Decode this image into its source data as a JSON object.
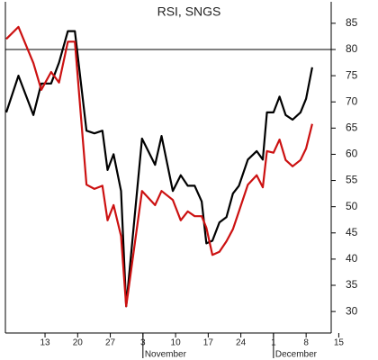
{
  "chart_data": {
    "type": "line",
    "title": "RSI, SNGS",
    "x": [
      4.7,
      7.3,
      10.5,
      12.2,
      14.3,
      16,
      17.9,
      19.4,
      21.9,
      23.6,
      25.3,
      26.4,
      27.7,
      29.3,
      30.4,
      33.8,
      36.6,
      38,
      40.4,
      42.1,
      43.6,
      45.1,
      46.6,
      47.6,
      48.9,
      50.4,
      51.9,
      53.3,
      54.6,
      56.5,
      58.4,
      59.7,
      60.6,
      62,
      63.3,
      64.6,
      66.1,
      67.8,
      69,
      70.3
    ],
    "series": [
      {
        "name": "RSI",
        "color": "#000000",
        "values": [
          68,
          75,
          67.5,
          73.5,
          73.5,
          77.5,
          83.5,
          83.5,
          64.5,
          64,
          64.5,
          57,
          60,
          53,
          31,
          63,
          58,
          63.5,
          53,
          56,
          54,
          54,
          51,
          43,
          43.5,
          47,
          48,
          52.5,
          54,
          59,
          60.6,
          59,
          68,
          68,
          71,
          67.5,
          66.6,
          68,
          70.6,
          76.6
        ]
      },
      {
        "name": "Signal",
        "color": "#cc1111",
        "values": [
          82,
          84.3,
          77.4,
          72.3,
          75.7,
          73.7,
          81.5,
          81.5,
          54.2,
          53.4,
          54,
          47.4,
          50.3,
          44.4,
          31,
          53,
          50.3,
          53,
          51.3,
          47.4,
          49.1,
          48.2,
          48.2,
          46,
          40.8,
          41.4,
          43.4,
          45.7,
          49.1,
          54.2,
          56,
          53.7,
          60.6,
          60.3,
          62.8,
          58.9,
          57.7,
          58.9,
          61.1,
          65.8
        ]
      }
    ],
    "xlim": [
      4.5,
      76.5
    ],
    "xticks": [
      {
        "value": 13,
        "label": "13"
      },
      {
        "value": 20,
        "label": "20"
      },
      {
        "value": 27,
        "label": "27"
      },
      {
        "value": 34,
        "label": "3"
      },
      {
        "value": 41,
        "label": "10"
      },
      {
        "value": 48,
        "label": "17"
      },
      {
        "value": 55,
        "label": "24"
      },
      {
        "value": 62,
        "label": "1"
      },
      {
        "value": 69,
        "label": "8"
      },
      {
        "value": 76,
        "label": "15"
      }
    ],
    "months": [
      {
        "value": 34,
        "label": "November"
      },
      {
        "value": 62,
        "label": "December"
      }
    ],
    "ylim": [
      25.9,
      89.1
    ],
    "yticks": [
      30,
      35,
      40,
      45,
      50,
      55,
      60,
      65,
      70,
      75,
      80,
      85
    ],
    "hline": 80
  }
}
